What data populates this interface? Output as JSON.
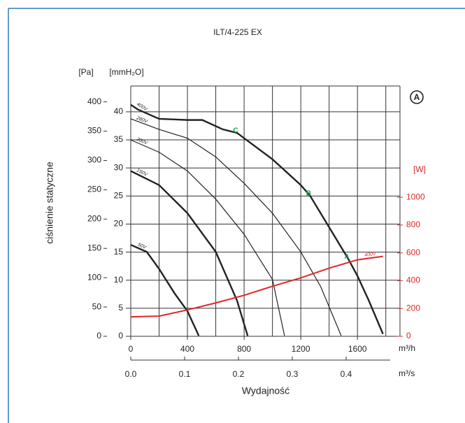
{
  "chart_data": {
    "type": "line",
    "title": "ILT/4-225 EX",
    "y_unit": "[Pa]",
    "y_mmh2o_unit": "[mmH₂O]",
    "y2_unit": "[W]",
    "y_label": "ciśnienie statyczne",
    "x_label": "Wydajność",
    "x_unit": "m³/h",
    "x2_unit": "m³/s",
    "badge": "A",
    "xlim": [
      0,
      1900
    ],
    "xticks": [
      0,
      400,
      800,
      1200,
      1600
    ],
    "xgrid": [
      200,
      400,
      600,
      800,
      1000,
      1200,
      1400,
      1600,
      1800
    ],
    "x2lim": [
      0,
      0.5
    ],
    "x2ticks": [
      {
        "value": 0,
        "label": "0.0"
      },
      0.1,
      0.2,
      0.3,
      0.4
    ],
    "ylim": [
      0,
      427
    ],
    "yticks": [
      0,
      50,
      100,
      150,
      200,
      250,
      300,
      350,
      400
    ],
    "y_mmh2o_lim": [
      0,
      44.6
    ],
    "y_mmh2o_ticks": [
      0,
      5,
      10,
      15,
      20,
      25,
      30,
      35,
      40
    ],
    "y2lim": [
      0,
      1800
    ],
    "y2ticks": [
      0,
      200,
      400,
      600,
      800,
      1000
    ],
    "grid": true,
    "series": [
      {
        "name": "400V",
        "color": "#222222",
        "width": 2.4,
        "x": [
          0,
          50,
          200,
          400,
          505,
          650,
          750,
          1000,
          1200,
          1265,
          1400,
          1535,
          1600,
          1680,
          1780
        ],
        "values": [
          395,
          387,
          371,
          369,
          369,
          353,
          347,
          302,
          258,
          240,
          186,
          132,
          103,
          61,
          4
        ]
      },
      {
        "name": "280V",
        "color": "#222222",
        "width": 1.2,
        "x": [
          0,
          200,
          400,
          600,
          800,
          1000,
          1200,
          1340,
          1485
        ],
        "values": [
          371,
          353,
          338,
          306,
          261,
          210,
          144,
          85,
          1
        ]
      },
      {
        "name": "200V",
        "color": "#222222",
        "width": 1.2,
        "x": [
          0,
          200,
          400,
          600,
          800,
          1000,
          1085
        ],
        "values": [
          335,
          314,
          282,
          234,
          174,
          97,
          1
        ]
      },
      {
        "name": "150V",
        "color": "#222222",
        "width": 2.4,
        "x": [
          0,
          200,
          400,
          600,
          750,
          825
        ],
        "values": [
          282,
          258,
          210,
          144,
          61,
          1
        ]
      },
      {
        "name": "50V",
        "color": "#222222",
        "width": 2.4,
        "x": [
          0,
          113,
          200,
          310,
          400,
          480
        ],
        "values": [
          156,
          144,
          115,
          73,
          43,
          1
        ]
      },
      {
        "name": "400V",
        "color": "#e0262a",
        "width": 2,
        "axis": "y2",
        "x": [
          0,
          200,
          400,
          600,
          800,
          1000,
          1200,
          1400,
          1600,
          1780
        ],
        "values": [
          140,
          145,
          190,
          240,
          295,
          360,
          420,
          490,
          550,
          575
        ]
      }
    ],
    "points": [
      {
        "label": "A",
        "x": 1535,
        "y": 132
      },
      {
        "label": "B",
        "x": 1265,
        "y": 240
      },
      {
        "label": "C",
        "x": 750,
        "y": 347
      }
    ],
    "point_color": "#1aa64a"
  }
}
